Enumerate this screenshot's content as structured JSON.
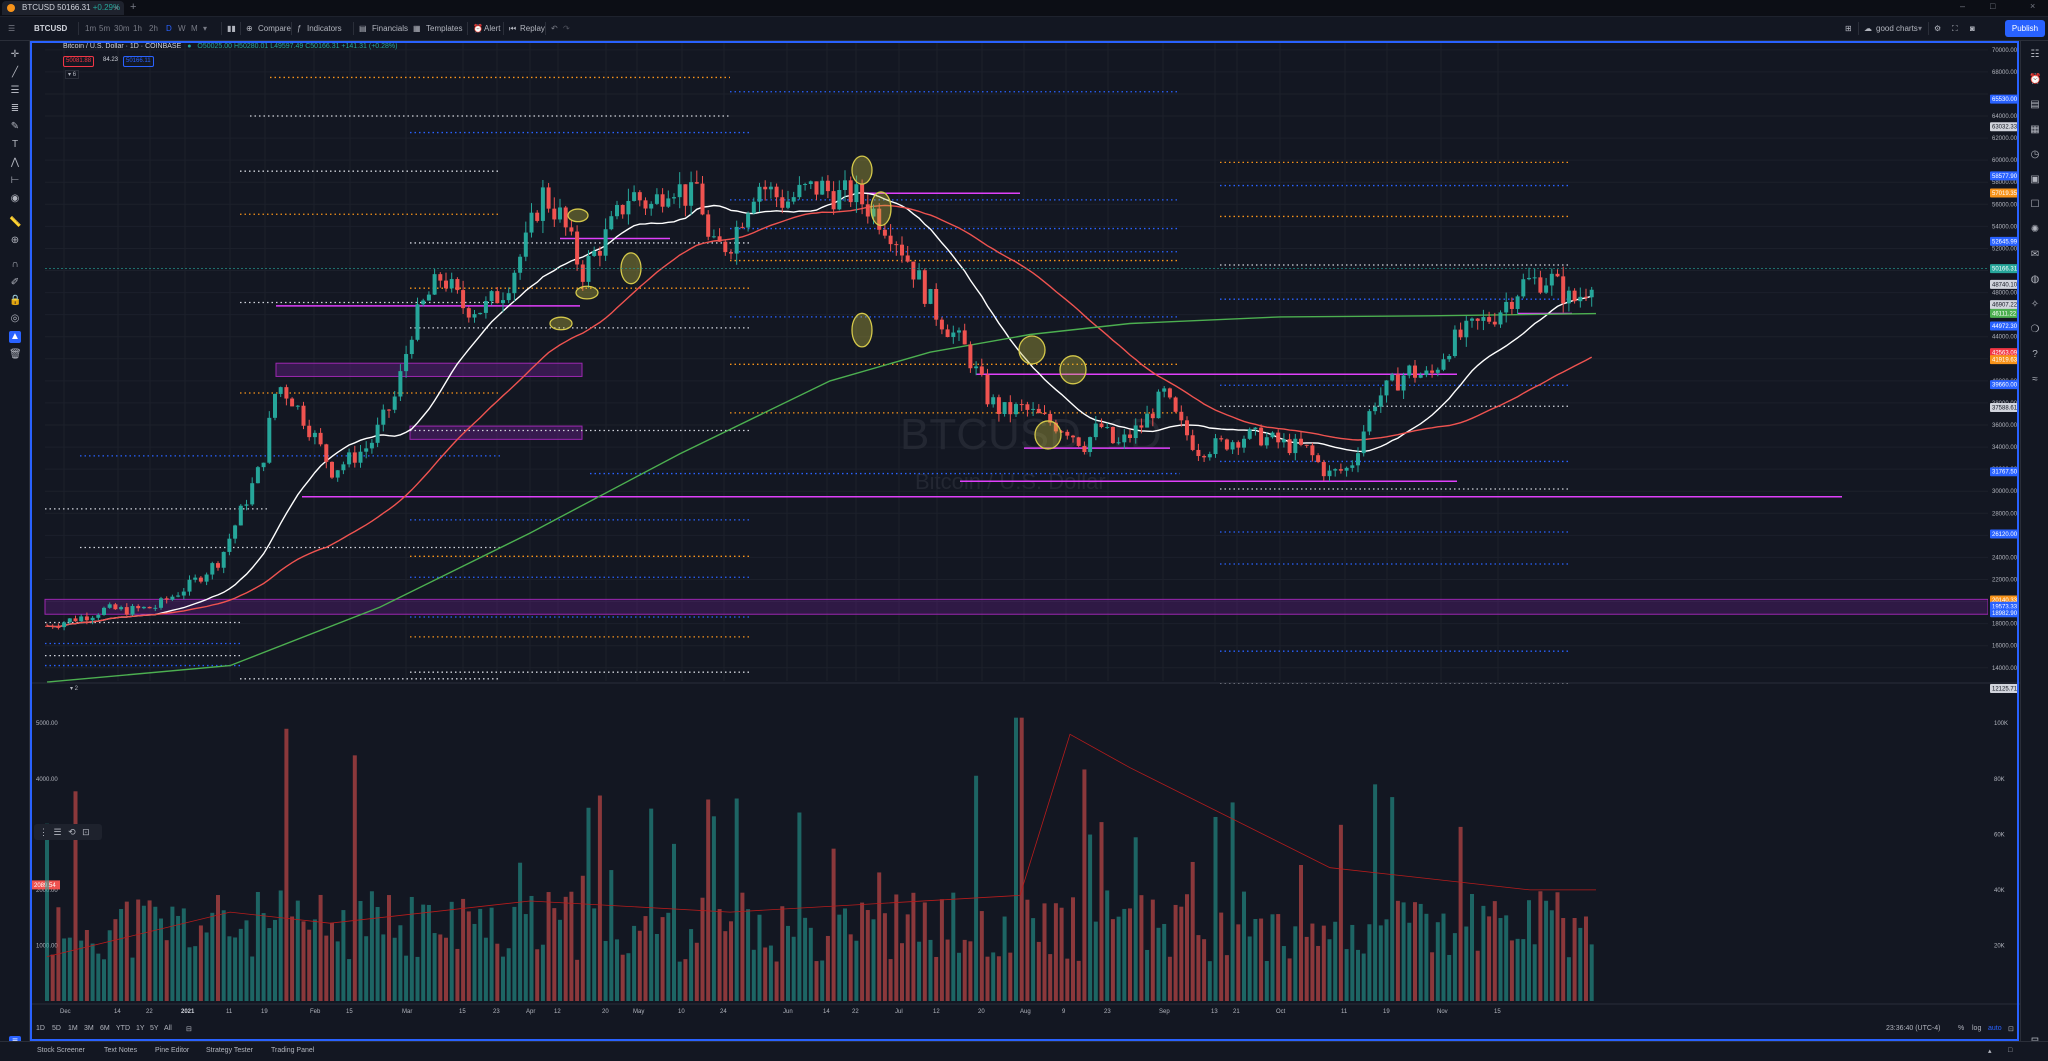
{
  "browser": {
    "tab_title": "BTCUSD",
    "tab_price": "50166.31",
    "tab_change": "+0.29%"
  },
  "toolbar": {
    "symbol": "BTCUSD",
    "intervals": [
      "1m",
      "5m",
      "30m",
      "1h",
      "2h",
      "D",
      "W",
      "M"
    ],
    "active_interval": "D",
    "compare": "Compare",
    "indicators": "Indicators",
    "financials": "Financials",
    "templates": "Templates",
    "alert": "Alert",
    "replay": "Replay",
    "layout_name": "good charts",
    "publish": "Publish"
  },
  "legend": {
    "title": "Bitcoin / U.S. Dollar · 1D · COINBASE",
    "ohlc": "O50025.00 H50280.01 L49597.49 C50166.31 +141.31 (+0.28%)",
    "sell": "50081.88",
    "spread": "84.23",
    "buy": "50166.11",
    "indicator_count": "6"
  },
  "watermark": {
    "symbol": "BTCUSD, 1D",
    "name": "Bitcoin / U.S. Dollar"
  },
  "chart_data": {
    "type": "candlestick",
    "title": "Bitcoin / U.S. Dollar · 1D · COINBASE",
    "x_labels": [
      "Dec",
      "14",
      "22",
      "2021",
      "11",
      "19",
      "Feb",
      "15",
      "Mar",
      "15",
      "23",
      "Apr",
      "12",
      "20",
      "May",
      "10",
      "24",
      "Jun",
      "14",
      "22",
      "Jul",
      "12",
      "20",
      "Aug",
      "9",
      "23",
      "Sep",
      "13",
      "21",
      "Oct",
      "11",
      "19",
      "Nov",
      "15"
    ],
    "y_axis_labels": [
      "70000.00",
      "68000.00",
      "64000.00",
      "62000.00",
      "60000.00",
      "58000.00",
      "56000.00",
      "54000.00",
      "52000.00",
      "50000.00",
      "48000.00",
      "46000.00",
      "44000.00",
      "42000.00",
      "40000.00",
      "38000.00",
      "36000.00",
      "34000.00",
      "32000.00",
      "30000.00",
      "28000.00",
      "26000.00",
      "24000.00",
      "22000.00",
      "20000.00",
      "18000.00",
      "16000.00",
      "14000.00"
    ],
    "ylim": [
      12800,
      70800
    ],
    "scale": "linear",
    "price_tags": [
      {
        "value": "65530.00",
        "color": "#2962ff"
      },
      {
        "value": "63032.33",
        "color": "#d1d4dc"
      },
      {
        "value": "58577.90",
        "color": "#2962ff"
      },
      {
        "value": "57019.35",
        "color": "#f7931a"
      },
      {
        "value": "52645.99",
        "color": "#2962ff"
      },
      {
        "value": "50166.31",
        "color": "#26a69a"
      },
      {
        "value": "48740.10",
        "color": "#d1d4dc"
      },
      {
        "value": "46907.22",
        "color": "#d1d4dc"
      },
      {
        "value": "46111.22",
        "color": "#4caf50"
      },
      {
        "value": "44972.30",
        "color": "#2962ff"
      },
      {
        "value": "42563.09",
        "color": "#f23645"
      },
      {
        "value": "41919.63",
        "color": "#f7931a"
      },
      {
        "value": "39660.00",
        "color": "#2962ff"
      },
      {
        "value": "37588.61",
        "color": "#d1d4dc"
      },
      {
        "value": "31767.50",
        "color": "#2962ff"
      },
      {
        "value": "26120.00",
        "color": "#2962ff"
      },
      {
        "value": "20140.33",
        "color": "#f7931a"
      },
      {
        "value": "19573.33",
        "color": "#2962ff"
      },
      {
        "value": "18982.90",
        "color": "#2962ff"
      },
      {
        "value": "12125.71",
        "color": "#d1d4dc"
      }
    ],
    "overlays": [
      "SMA short (white)",
      "SMA medium (red)",
      "SMA long (green)",
      "horizontal support/resistance lines (magenta)",
      "zones (purple)",
      "dotted pivot levels"
    ],
    "volume": {
      "pane_label": "2",
      "y_labels": [
        "5000.00",
        "4000.00",
        "3000.00",
        "2000.00",
        "1000.00"
      ],
      "right_labels": [
        "100K",
        "80K",
        "60K",
        "40K",
        "20K"
      ],
      "last_tag": "2089.54"
    }
  },
  "range_bar": {
    "ranges": [
      "1D",
      "5D",
      "1M",
      "3M",
      "6M",
      "YTD",
      "1Y",
      "5Y",
      "All"
    ],
    "time": "23:36:40 (UTC-4)",
    "pct": "%",
    "log": "log",
    "auto": "auto"
  },
  "bottom_tabs": [
    "Stock Screener",
    "Text Notes",
    "Pine Editor",
    "Strategy Tester",
    "Trading Panel"
  ],
  "colors": {
    "background": "#131722",
    "up": "#26a69a",
    "down": "#ef5350",
    "accent": "#2962ff"
  }
}
